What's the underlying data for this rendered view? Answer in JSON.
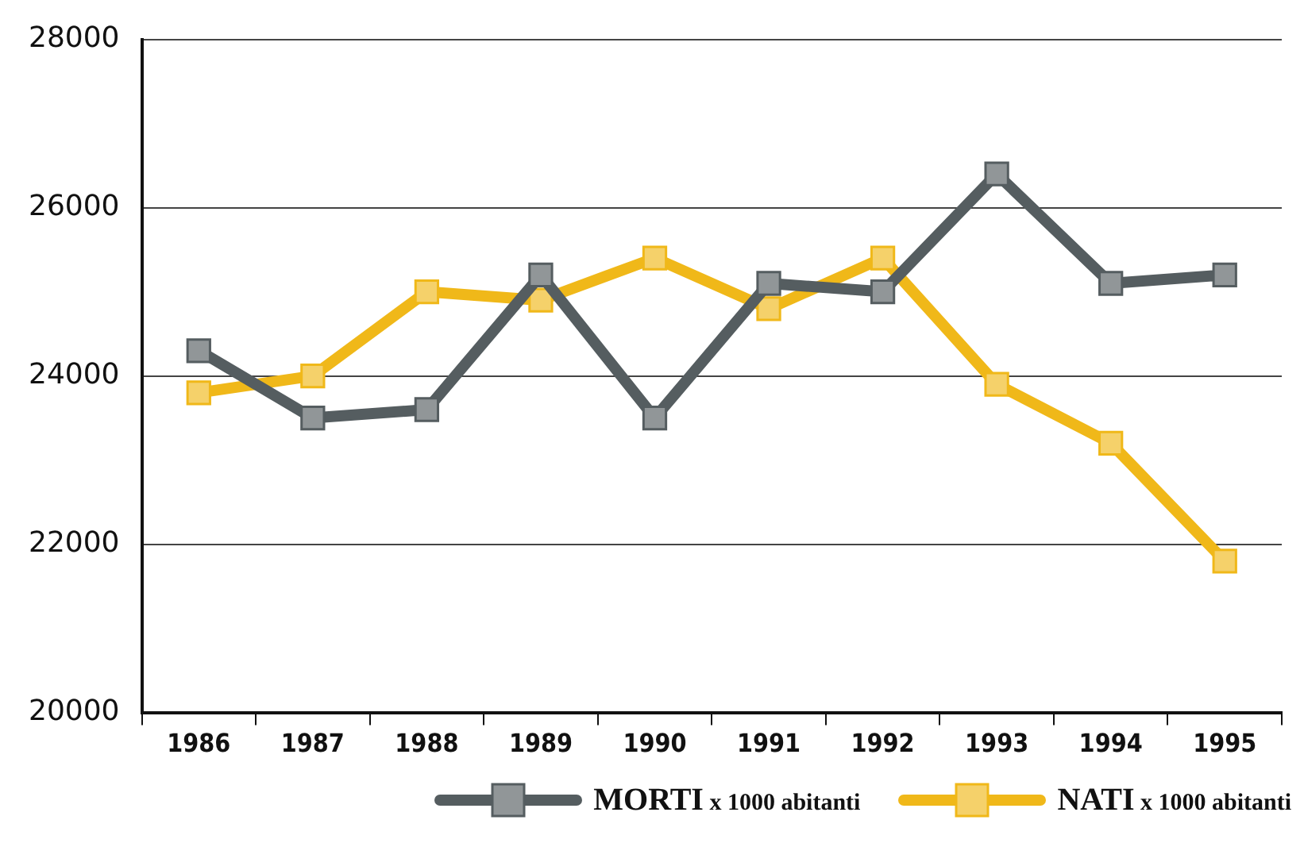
{
  "chart_data": {
    "type": "line",
    "categories": [
      "1986",
      "1987",
      "1988",
      "1989",
      "1990",
      "1991",
      "1992",
      "1993",
      "1994",
      "1995"
    ],
    "series": [
      {
        "name": "MORTI x 1000 abitanti",
        "color": "#555d60",
        "values": [
          24300,
          23500,
          23600,
          25200,
          23500,
          25100,
          25000,
          26400,
          25100,
          25200
        ]
      },
      {
        "name": "NATI x 1000 abitanti",
        "color": "#f0b819",
        "values": [
          23800,
          24000,
          25000,
          24900,
          25400,
          24800,
          25400,
          23900,
          23200,
          21800
        ]
      }
    ],
    "ylim": [
      20000,
      28000
    ],
    "yticks": [
      20000,
      22000,
      24000,
      26000,
      28000
    ],
    "grid": "y",
    "legend": "bottom",
    "marker": "square",
    "line_style": "solid"
  }
}
